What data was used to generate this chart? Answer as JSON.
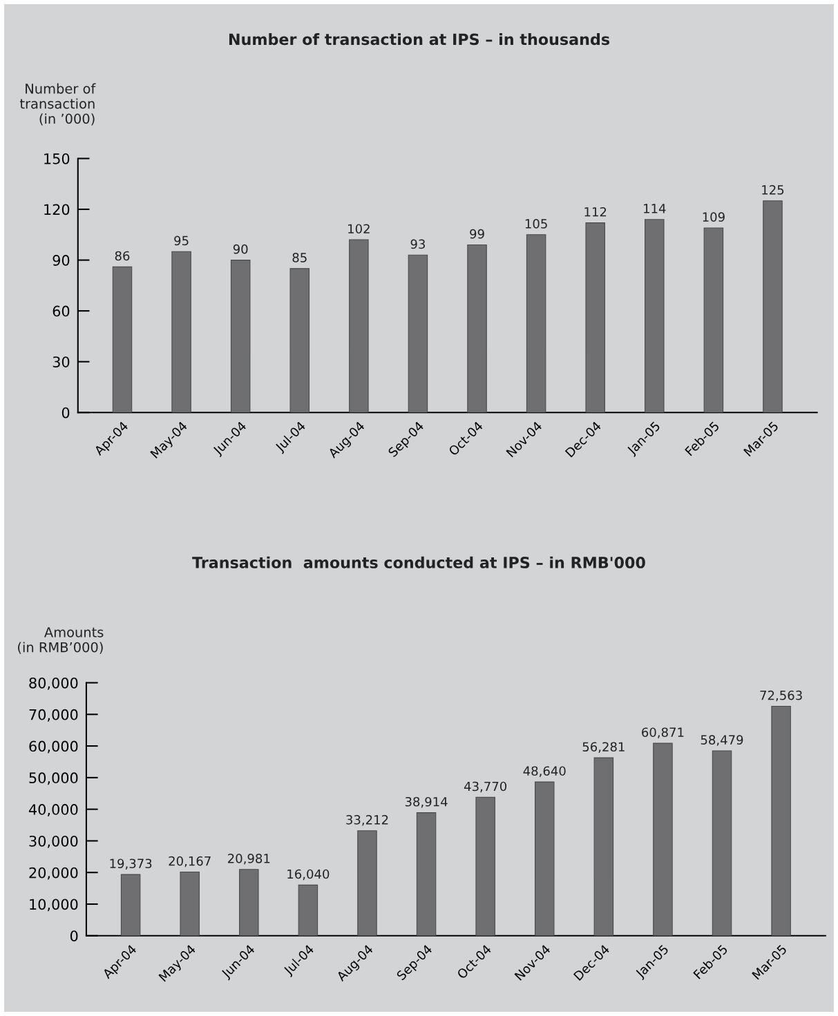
{
  "chart_data": [
    {
      "type": "bar",
      "title": "Number of transaction at IPS – in thousands",
      "ylabel": "Number of\ntransaction\n(in ’000)",
      "categories": [
        "Apr-04",
        "May-04",
        "Jun-04",
        "Jul-04",
        "Aug-04",
        "Sep-04",
        "Oct-04",
        "Nov-04",
        "Dec-04",
        "Jan-05",
        "Feb-05",
        "Mar-05"
      ],
      "values": [
        86,
        95,
        90,
        85,
        102,
        93,
        99,
        105,
        112,
        114,
        109,
        125
      ],
      "color": "#6f6f71",
      "ylim": [
        0,
        150
      ],
      "yticks": [
        0,
        30,
        60,
        90,
        120,
        150
      ],
      "grid": false,
      "data_labels": true
    },
    {
      "type": "bar",
      "title": "Transaction  amounts conducted at IPS – in RMB'000",
      "ylabel": "Amounts\n(in RMB’000)",
      "categories": [
        "Apr-04",
        "May-04",
        "Jun-04",
        "Jul-04",
        "Aug-04",
        "Sep-04",
        "Oct-04",
        "Nov-04",
        "Dec-04",
        "Jan-05",
        "Feb-05",
        "Mar-05"
      ],
      "values": [
        19373,
        20167,
        20981,
        16040,
        33212,
        38914,
        43770,
        48640,
        56281,
        60871,
        58479,
        72563
      ],
      "color": "#6f6f71",
      "value_labels": [
        "19,373",
        "20,167",
        "20,981",
        "16,040",
        "33,212",
        "38,914",
        "43,770",
        "48,640",
        "56,281",
        "60,871",
        "58,479",
        "72,563"
      ],
      "ylim": [
        0,
        80000
      ],
      "yticks": [
        {
          "value": 0,
          "label": "0"
        },
        {
          "value": 10000,
          "label": "10,000"
        },
        {
          "value": 20000,
          "label": "20,000"
        },
        {
          "value": 30000,
          "label": "30,000"
        },
        {
          "value": 40000,
          "label": "40,000"
        },
        {
          "value": 50000,
          "label": "50,000"
        },
        {
          "value": 60000,
          "label": "60,000"
        },
        {
          "value": 70000,
          "label": "70,000"
        },
        {
          "value": 80000,
          "label": "80,000"
        }
      ],
      "grid": false
    }
  ]
}
